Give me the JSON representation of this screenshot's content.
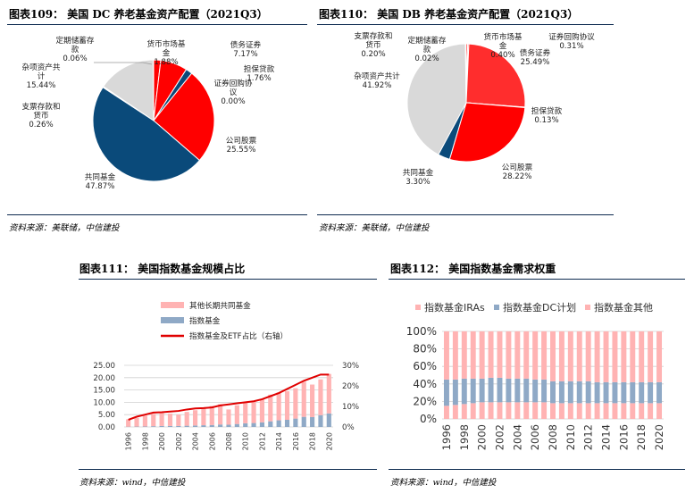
{
  "colors": {
    "navy": "#0a4a7a",
    "red": "#ff0000",
    "red_mid": "#e8002a",
    "red_light": "#ff2d2d",
    "pink": "#ffb3b3",
    "grey": "#d9d9d9",
    "steel": "#8fa9c6",
    "rule": "#0d2a4f"
  },
  "header": {
    "fig109": "图表109：  美国 DC 养老基金资产配置（2021Q3）",
    "fig110": "图表110：  美国 DB 养老基金资产配置（2021Q3）",
    "fig111": "图表111：  美国指数基金规模占比",
    "fig112": "图表112：  美国指数基金需求权重"
  },
  "sources": {
    "fig109": "资料来源：美联储，中信建投",
    "fig110": "资料来源：美联储，中信建投",
    "fig111": "资料来源：wind，中信建投",
    "fig112": "资料来源：wind，中信建投"
  },
  "chart_data": [
    {
      "id": "fig109",
      "type": "pie",
      "title": "美国 DC 养老基金资产配置（2021Q3）",
      "slices": [
        {
          "label": "货币市场基金",
          "value": 1.88,
          "pct": "1.88%",
          "color": "#ff0000"
        },
        {
          "label": "债务证券",
          "value": 7.17,
          "pct": "7.17%",
          "color": "#ff0000"
        },
        {
          "label": "担保贷款",
          "value": 1.76,
          "pct": "1.76%",
          "color": "#0a4a7a"
        },
        {
          "label": "证券回购协议",
          "value": 0.0,
          "pct": "0.00%",
          "color": "#ff0000"
        },
        {
          "label": "公司股票",
          "value": 25.55,
          "pct": "25.55%",
          "color": "#ff0000"
        },
        {
          "label": "共同基金",
          "value": 47.87,
          "pct": "47.87%",
          "color": "#0a4a7a"
        },
        {
          "label": "支票存款和货币",
          "value": 0.26,
          "pct": "0.26%",
          "color": "#ff2d2d"
        },
        {
          "label": "杂项资产共计",
          "value": 15.44,
          "pct": "15.44%",
          "color": "#d9d9d9"
        },
        {
          "label": "定期储蓄存款",
          "value": 0.06,
          "pct": "0.06%",
          "color": "#ffb3b3"
        }
      ]
    },
    {
      "id": "fig110",
      "type": "pie",
      "title": "美国 DB 养老基金资产配置（2021Q3）",
      "slices": [
        {
          "label": "货币市场基金",
          "value": 0.4,
          "pct": "0.40%",
          "color": "#ff0000"
        },
        {
          "label": "证券回购协议",
          "value": 0.31,
          "pct": "0.31%",
          "color": "#ff0000"
        },
        {
          "label": "债务证券",
          "value": 25.49,
          "pct": "25.49%",
          "color": "#ff2d2d"
        },
        {
          "label": "担保贷款",
          "value": 0.13,
          "pct": "0.13%",
          "color": "#ff0000"
        },
        {
          "label": "公司股票",
          "value": 28.22,
          "pct": "28.22%",
          "color": "#ff0000"
        },
        {
          "label": "共同基金",
          "value": 3.3,
          "pct": "3.30%",
          "color": "#0a4a7a"
        },
        {
          "label": "杂项资产共计",
          "value": 41.92,
          "pct": "41.92%",
          "color": "#d9d9d9"
        },
        {
          "label": "支票存款和货币",
          "value": 0.2,
          "pct": "0.20%",
          "color": "#ff2d2d"
        },
        {
          "label": "定期储蓄存款",
          "value": 0.02,
          "pct": "0.02%",
          "color": "#ffb3b3"
        }
      ]
    },
    {
      "id": "fig111",
      "type": "bar",
      "title": "美国指数基金规模占比",
      "categories": [
        "1996",
        "1997",
        "1998",
        "1999",
        "2000",
        "2001",
        "2002",
        "2003",
        "2004",
        "2005",
        "2006",
        "2007",
        "2008",
        "2009",
        "2010",
        "2011",
        "2012",
        "2013",
        "2014",
        "2015",
        "2016",
        "2017",
        "2018",
        "2019",
        "2020"
      ],
      "tick_labels": [
        "1996",
        "1998",
        "2000",
        "2002",
        "2004",
        "2006",
        "2008",
        "2010",
        "2012",
        "2014",
        "2016",
        "2018",
        "2020"
      ],
      "series": [
        {
          "name": "其他长期共同基金",
          "kind": "bar",
          "stack": "s",
          "color": "#ffb3b3",
          "values": [
            3.0,
            3.5,
            4.4,
            5.0,
            5.2,
            5.0,
            4.6,
            5.6,
            6.2,
            6.8,
            7.7,
            8.2,
            6.2,
            7.6,
            8.4,
            8.5,
            9.3,
            10.8,
            11.3,
            11.6,
            12.3,
            14.2,
            13.2,
            14.5,
            16.0
          ]
        },
        {
          "name": "指数基金",
          "kind": "bar",
          "stack": "s",
          "color": "#8fa9c6",
          "values": [
            0.1,
            0.15,
            0.2,
            0.3,
            0.4,
            0.4,
            0.4,
            0.5,
            0.6,
            0.7,
            0.8,
            1.0,
            0.9,
            1.2,
            1.5,
            1.6,
            1.9,
            2.3,
            2.7,
            2.9,
            3.4,
            4.1,
            4.0,
            4.8,
            5.5
          ]
        },
        {
          "name": "指数基金及ETF占比（右轴）",
          "kind": "line",
          "axis": "right",
          "color": "#e00000",
          "values": [
            3.5,
            5.0,
            6.0,
            7.0,
            7.2,
            7.5,
            7.8,
            8.5,
            9.0,
            9.2,
            9.5,
            10.5,
            11.0,
            11.5,
            12.0,
            12.5,
            13.5,
            15.0,
            16.5,
            18.5,
            20.5,
            22.5,
            24.0,
            25.5,
            25.5
          ]
        }
      ],
      "ylim_left": [
        0,
        25
      ],
      "yticks_left": [
        "0.00",
        "5.00",
        "10.00",
        "15.00",
        "20.00",
        "25.00"
      ],
      "ylim_right": [
        0,
        30
      ],
      "yticks_right": [
        "0%",
        "10%",
        "20%",
        "30%"
      ],
      "legend": "top-left"
    },
    {
      "id": "fig112",
      "type": "bar",
      "title": "美国指数基金需求权重",
      "categories": [
        "1996",
        "1997",
        "1998",
        "1999",
        "2000",
        "2001",
        "2002",
        "2003",
        "2004",
        "2005",
        "2006",
        "2007",
        "2008",
        "2009",
        "2010",
        "2011",
        "2012",
        "2013",
        "2014",
        "2015",
        "2016",
        "2017",
        "2018",
        "2019",
        "2020"
      ],
      "tick_labels": [
        "1996",
        "1998",
        "2000",
        "2002",
        "2004",
        "2006",
        "2008",
        "2010",
        "2012",
        "2014",
        "2016",
        "2018",
        "2020"
      ],
      "series": [
        {
          "name": "指数基金IRAs",
          "color": "#ffb3b3",
          "values": [
            15,
            16,
            17,
            18,
            19,
            19,
            19,
            19,
            19,
            19,
            19,
            19,
            18,
            18,
            18,
            18,
            18,
            18,
            18,
            18,
            18,
            18,
            18,
            18,
            18
          ]
        },
        {
          "name": "指数基金DC计划",
          "color": "#8fa9c6",
          "values": [
            30,
            29,
            29,
            28,
            27,
            28,
            28,
            27,
            27,
            27,
            26,
            26,
            25,
            25,
            25,
            25,
            25,
            24,
            24,
            24,
            24,
            24,
            24,
            24,
            24
          ]
        },
        {
          "name": "指数基金其他",
          "color": "#ffb3b3",
          "values": [
            55,
            55,
            54,
            54,
            54,
            53,
            53,
            54,
            54,
            54,
            55,
            55,
            57,
            57,
            57,
            57,
            57,
            58,
            58,
            58,
            58,
            58,
            58,
            58,
            58
          ]
        }
      ],
      "ylim": [
        0,
        100
      ],
      "yticks": [
        "0%",
        "20%",
        "40%",
        "60%",
        "80%",
        "100%"
      ],
      "legend": "top"
    }
  ]
}
